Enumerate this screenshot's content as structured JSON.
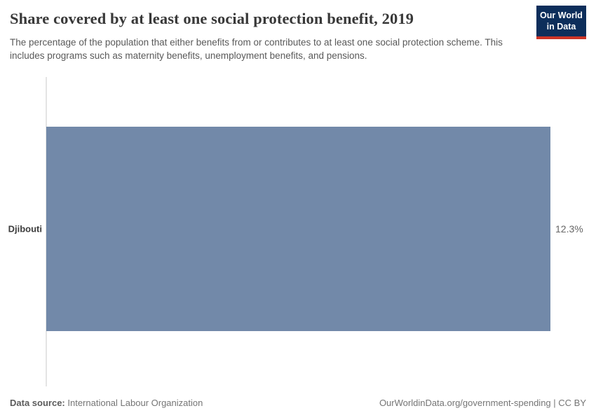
{
  "header": {
    "title": "Share covered by at least one social protection benefit, 2019",
    "subtitle": "The percentage of the population that either benefits from or contributes to at least one social protection scheme. This includes programs such as maternity benefits, unemployment benefits, and pensions.",
    "logo": {
      "line1": "Our World",
      "line2": "in Data"
    }
  },
  "chart_data": {
    "type": "bar",
    "orientation": "horizontal",
    "title": "Share covered by at least one social protection benefit, 2019",
    "categories": [
      "Djibouti"
    ],
    "values": [
      12.3
    ],
    "value_labels": [
      "12.3%"
    ],
    "xlim": [
      0,
      12.3
    ],
    "xlabel": "",
    "ylabel": "",
    "grid": false,
    "legend": "none"
  },
  "footer": {
    "source_label": "Data source:",
    "source_value": "International Labour Organization",
    "citation": "OurWorldinData.org/government-spending | CC BY"
  },
  "colors": {
    "bar": "#7289a9",
    "logo_background": "#0d2e5b",
    "logo_underline": "#cc3427",
    "axis_line": "#e4e4e4",
    "title_text": "#383838",
    "subtitle_text": "#595959"
  }
}
